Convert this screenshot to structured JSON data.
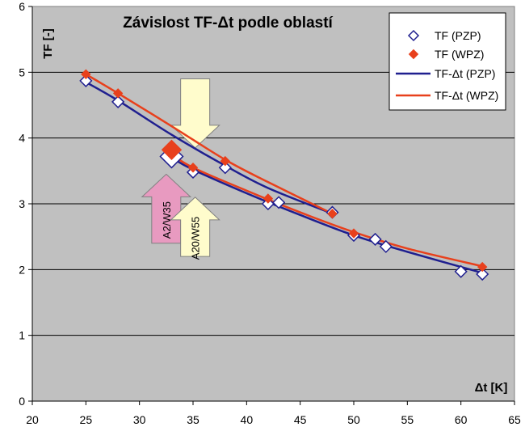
{
  "chart_data": {
    "type": "line",
    "title": "Závislost TF-Δt podle oblastí",
    "xlabel": "Δt [K]",
    "ylabel": "TF [-]",
    "xlim": [
      20,
      65
    ],
    "ylim": [
      0,
      6
    ],
    "x_ticks": [
      "20",
      "25",
      "30",
      "35",
      "40",
      "45",
      "50",
      "55",
      "60",
      "65"
    ],
    "y_ticks": [
      "0",
      "1",
      "2",
      "3",
      "4",
      "5",
      "6"
    ],
    "grid": "horizontal",
    "legend_position": "top-right",
    "colors": {
      "plot_background": "#c0c0c0",
      "pzp": "#1f1f8f",
      "wpz": "#e8401c",
      "arrow_yellow": "#fffccc",
      "arrow_pink": "#e89ac0"
    },
    "series": [
      {
        "name": "TF (PZP)",
        "kind": "marker",
        "marker": "open-diamond",
        "x": [
          25,
          28,
          33,
          35,
          38,
          42,
          43,
          48,
          50,
          52,
          53,
          60,
          62
        ],
        "y": [
          4.87,
          4.55,
          3.72,
          3.48,
          3.55,
          3.0,
          3.02,
          2.87,
          2.52,
          2.46,
          2.35,
          1.97,
          1.93
        ]
      },
      {
        "name": "TF (WPZ)",
        "kind": "marker",
        "marker": "filled-diamond",
        "x": [
          25,
          28,
          33,
          35,
          38,
          42,
          48,
          50,
          62
        ],
        "y": [
          4.97,
          4.68,
          3.82,
          3.55,
          3.65,
          3.08,
          2.85,
          2.55,
          2.04
        ]
      },
      {
        "name": "TF-Δt (PZP)",
        "kind": "line",
        "segments": [
          {
            "x": [
              25,
              28,
              33,
              38,
              42,
              48
            ],
            "y": [
              4.85,
              4.57,
              4.05,
              3.58,
              3.24,
              2.85
            ]
          },
          {
            "x": [
              33,
              35,
              40,
              45,
              50,
              55,
              62
            ],
            "y": [
              3.7,
              3.52,
              3.16,
              2.83,
              2.52,
              2.27,
              1.95
            ]
          }
        ]
      },
      {
        "name": "TF-Δt (WPZ)",
        "kind": "line",
        "segments": [
          {
            "x": [
              25,
              28,
              33,
              38,
              42,
              48
            ],
            "y": [
              4.97,
              4.68,
              4.18,
              3.67,
              3.33,
              2.85
            ]
          },
          {
            "x": [
              33,
              35,
              40,
              45,
              50,
              55,
              62
            ],
            "y": [
              3.75,
              3.55,
              3.2,
              2.87,
              2.57,
              2.32,
              2.05
            ]
          }
        ]
      }
    ],
    "highlight_points": [
      {
        "x": 33,
        "y": 3.72,
        "series": "TF (PZP)"
      },
      {
        "x": 33,
        "y": 3.82,
        "series": "TF (WPZ)"
      }
    ],
    "annotations": [
      {
        "text": "A2/W35",
        "kind": "arrow-up",
        "color": "pink",
        "x": 32.5,
        "y_tail": 2.4,
        "y_head": 3.45
      },
      {
        "text": "A20/W55",
        "kind": "arrow-up",
        "color": "yellow",
        "x": 35.2,
        "y_tail": 2.2,
        "y_head": 3.1
      },
      {
        "kind": "arrow-down",
        "color": "yellow",
        "x": 35.2,
        "y_tail": 4.9,
        "y_head": 3.85
      }
    ]
  }
}
